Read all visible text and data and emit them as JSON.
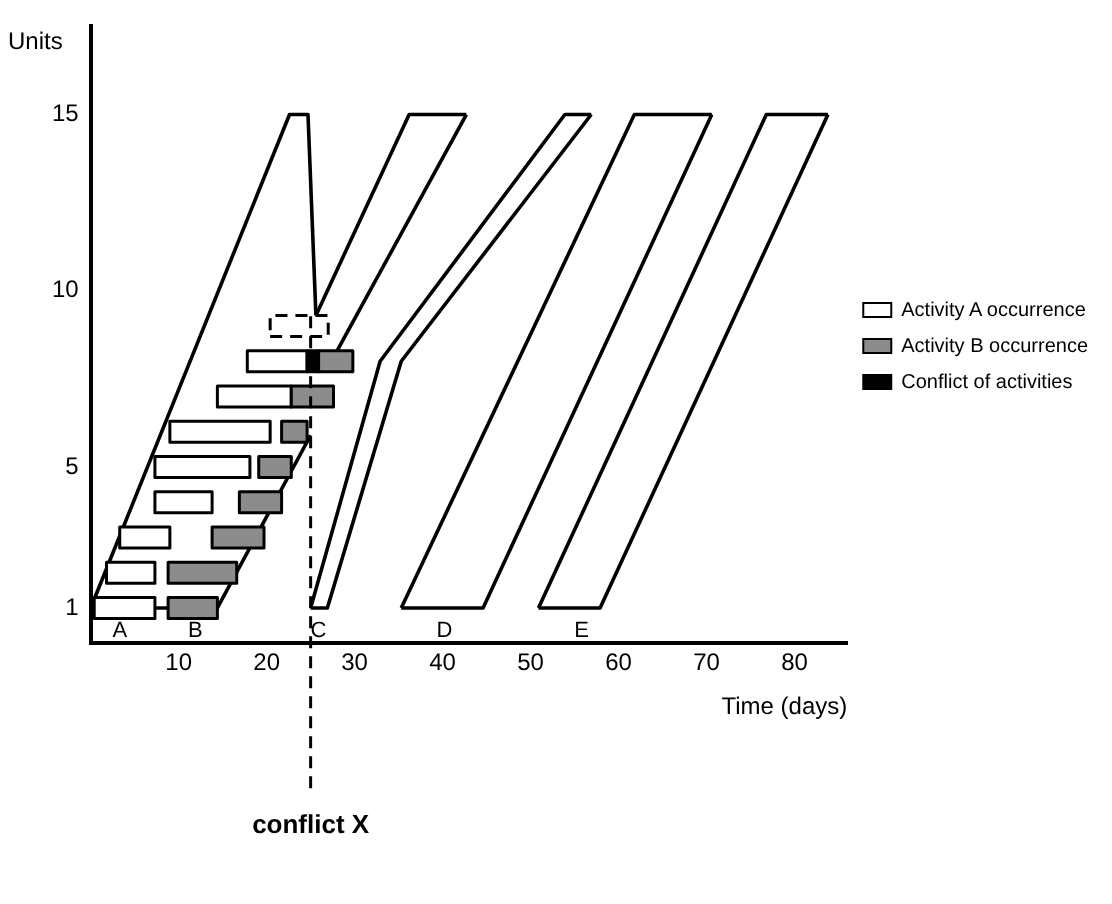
{
  "chart_data": {
    "type": "line",
    "xlabel": "Time (days)",
    "ylabel": "Units",
    "xlim": [
      0,
      86
    ],
    "ylim": [
      0,
      17.5
    ],
    "xticks": [
      10,
      20,
      30,
      40,
      50,
      60,
      70,
      80
    ],
    "yticks": [
      1,
      5,
      10,
      15
    ],
    "grid": false,
    "legend": "right",
    "series": [
      {
        "type": "line",
        "color": "#000000",
        "x": [
          0,
          22.6,
          24.7,
          25.6
        ],
        "values": [
          1,
          15,
          15,
          9.3
        ]
      },
      {
        "type": "line",
        "color": "#000000",
        "x": [
          0,
          14.4,
          25
        ],
        "values": [
          1,
          1,
          5.9
        ]
      },
      {
        "type": "line",
        "color": "#000000",
        "x": [
          25.6,
          36.2,
          42.7
        ],
        "values": [
          9.3,
          15,
          15
        ]
      },
      {
        "type": "line",
        "color": "#000000",
        "x": [
          27.8,
          42.7
        ],
        "values": [
          8.2,
          15
        ]
      },
      {
        "type": "line",
        "color": "#000000",
        "x": [
          25,
          32.9,
          53.9,
          56.9
        ],
        "values": [
          1,
          8,
          15,
          15
        ]
      },
      {
        "type": "line",
        "color": "#000000",
        "x": [
          25,
          26.9,
          35.3,
          56.9
        ],
        "values": [
          1,
          1,
          8,
          15
        ]
      },
      {
        "type": "line",
        "color": "#000000",
        "x": [
          35.3,
          61.8,
          70.6
        ],
        "values": [
          1,
          15,
          15
        ]
      },
      {
        "type": "line",
        "color": "#000000",
        "x": [
          35.3,
          44.6,
          70.6
        ],
        "values": [
          1,
          1,
          15
        ]
      },
      {
        "type": "line",
        "color": "#000000",
        "x": [
          50.9,
          76.8,
          83.8
        ],
        "values": [
          1,
          15,
          15
        ]
      },
      {
        "type": "line",
        "color": "#000000",
        "x": [
          50.9,
          57.9,
          83.8
        ],
        "values": [
          1,
          1,
          15
        ]
      },
      {
        "type": "area",
        "color": "#ffffff",
        "line_style": "dashed",
        "x": [
          20.4,
          27,
          27,
          20.4,
          20.4
        ],
        "values": [
          8.7,
          8.7,
          9.3,
          9.3,
          8.7
        ]
      },
      {
        "name": "Activity A occurrence",
        "type": "area",
        "color": "#ffffff",
        "x": [
          0.4,
          7.3,
          7.3,
          0.4,
          0.4
        ],
        "values": [
          0.7,
          0.7,
          1.3,
          1.3,
          0.7
        ]
      },
      {
        "type": "area",
        "color": "#ffffff",
        "x": [
          1.8,
          7.3,
          7.3,
          1.8,
          1.8
        ],
        "values": [
          1.7,
          1.7,
          2.3,
          2.3,
          1.7
        ]
      },
      {
        "type": "area",
        "color": "#ffffff",
        "x": [
          3.3,
          9,
          9,
          3.3,
          3.3
        ],
        "values": [
          2.7,
          2.7,
          3.3,
          3.3,
          2.7
        ]
      },
      {
        "type": "area",
        "color": "#ffffff",
        "x": [
          7.3,
          13.8,
          13.8,
          7.3,
          7.3
        ],
        "values": [
          3.7,
          3.7,
          4.3,
          4.3,
          3.7
        ]
      },
      {
        "type": "area",
        "color": "#ffffff",
        "x": [
          7.3,
          18.1,
          18.1,
          7.3,
          7.3
        ],
        "values": [
          4.7,
          4.7,
          5.3,
          5.3,
          4.7
        ]
      },
      {
        "type": "area",
        "color": "#ffffff",
        "x": [
          9,
          20.4,
          20.4,
          9,
          9
        ],
        "values": [
          5.7,
          5.7,
          6.3,
          6.3,
          5.7
        ]
      },
      {
        "type": "area",
        "color": "#ffffff",
        "x": [
          14.4,
          22.8,
          22.8,
          14.4,
          14.4
        ],
        "values": [
          6.7,
          6.7,
          7.3,
          7.3,
          6.7
        ]
      },
      {
        "type": "area",
        "color": "#ffffff",
        "x": [
          17.8,
          24.6,
          24.6,
          17.8,
          17.8
        ],
        "values": [
          7.7,
          7.7,
          8.3,
          8.3,
          7.7
        ]
      },
      {
        "name": "Activity B occurrence",
        "type": "area",
        "color": "#8c8c8c",
        "x": [
          8.8,
          14.4,
          14.4,
          8.8,
          8.8
        ],
        "values": [
          0.7,
          0.7,
          1.3,
          1.3,
          0.7
        ]
      },
      {
        "type": "area",
        "color": "#8c8c8c",
        "x": [
          8.8,
          16.6,
          16.6,
          8.8,
          8.8
        ],
        "values": [
          1.7,
          1.7,
          2.3,
          2.3,
          1.7
        ]
      },
      {
        "type": "area",
        "color": "#8c8c8c",
        "x": [
          13.8,
          19.7,
          19.7,
          13.8,
          13.8
        ],
        "values": [
          2.7,
          2.7,
          3.3,
          3.3,
          2.7
        ]
      },
      {
        "type": "area",
        "color": "#8c8c8c",
        "x": [
          16.9,
          21.7,
          21.7,
          16.9,
          16.9
        ],
        "values": [
          3.7,
          3.7,
          4.3,
          4.3,
          3.7
        ]
      },
      {
        "type": "area",
        "color": "#8c8c8c",
        "x": [
          19.1,
          22.8,
          22.8,
          19.1,
          19.1
        ],
        "values": [
          4.7,
          4.7,
          5.3,
          5.3,
          4.7
        ]
      },
      {
        "type": "area",
        "color": "#8c8c8c",
        "x": [
          21.7,
          24.6,
          24.6,
          21.7,
          21.7
        ],
        "values": [
          5.7,
          5.7,
          6.3,
          6.3,
          5.7
        ]
      },
      {
        "type": "area",
        "color": "#8c8c8c",
        "x": [
          22.8,
          27.6,
          27.6,
          22.8,
          22.8
        ],
        "values": [
          6.7,
          6.7,
          7.3,
          7.3,
          6.7
        ]
      },
      {
        "type": "area",
        "color": "#8c8c8c",
        "x": [
          25.9,
          29.8,
          29.8,
          25.9,
          25.9
        ],
        "values": [
          7.7,
          7.7,
          8.3,
          8.3,
          7.7
        ]
      },
      {
        "name": "Conflict of activities",
        "type": "area",
        "color": "#000000",
        "x": [
          24.6,
          25.9,
          25.9,
          24.6,
          24.6
        ],
        "values": [
          7.7,
          7.7,
          8.3,
          8.3,
          7.7
        ]
      }
    ],
    "ref_lines": [
      {
        "axis": "x",
        "value": 25,
        "label": "conflict X",
        "line_style": "dashed"
      }
    ],
    "annotations": [
      {
        "text": "A",
        "x": 3.3,
        "y": 1
      },
      {
        "text": "B",
        "x": 11.9,
        "y": 1
      },
      {
        "text": "C",
        "x": 25.9,
        "y": 1
      },
      {
        "text": "D",
        "x": 40.2,
        "y": 1
      },
      {
        "text": "E",
        "x": 55.8,
        "y": 1
      }
    ]
  }
}
